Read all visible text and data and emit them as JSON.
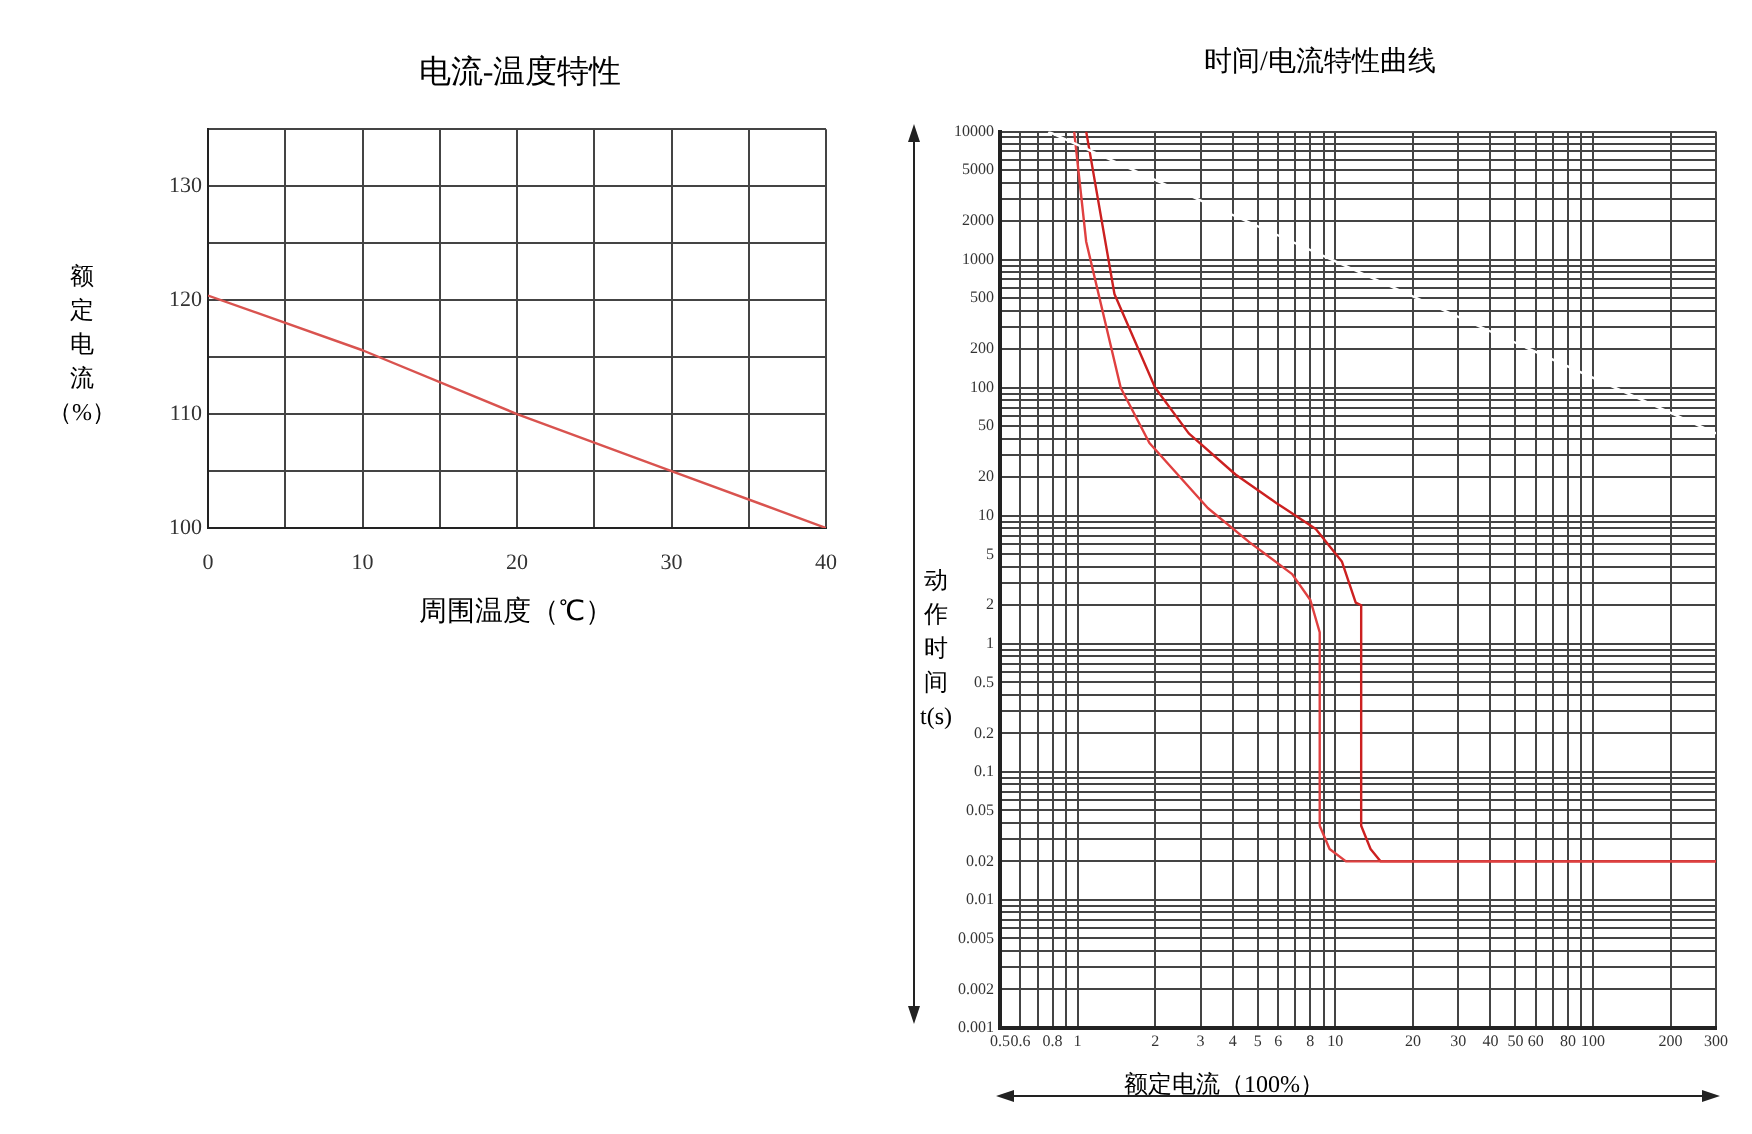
{
  "chart_data": [
    {
      "type": "line",
      "title": "电流-温度特性",
      "xlabel": "周围温度（℃）",
      "ylabel": "额定电流（%）",
      "x": [
        0,
        10,
        20,
        30,
        40
      ],
      "series": [
        {
          "color": "#d9534f",
          "values": [
            120.4,
            115.6,
            110,
            105,
            100
          ]
        }
      ],
      "xlim": [
        0,
        40
      ],
      "xticks": [
        0,
        {
          "value": 5,
          "label": null
        },
        10,
        {
          "value": 15,
          "label": null
        },
        20,
        {
          "value": 25,
          "label": null
        },
        30,
        {
          "value": 35,
          "label": null
        },
        40
      ],
      "ylim": [
        100,
        135
      ],
      "yticks": [
        100,
        {
          "value": 105,
          "label": null
        },
        110,
        {
          "value": 115,
          "label": null
        },
        120,
        {
          "value": 125,
          "label": null
        },
        130,
        {
          "value": 135,
          "label": null
        }
      ],
      "grid": true
    },
    {
      "type": "line",
      "title": "时间/电流特性曲线",
      "xlabel": "额定电流（100%）",
      "ylabel": "动作时间t(s)",
      "log": "xy",
      "series": [
        {
          "color": "#ffffff",
          "x": [
            0.77,
            300
          ],
          "values": [
            10000,
            44
          ]
        },
        {
          "color": "#e04040",
          "x": [
            0.97,
            1.08,
            1.47,
            1.9,
            3.2,
            4.65,
            6.8,
            8.0,
            8.7,
            8.7,
            9.5,
            11,
            300
          ],
          "values": [
            10000,
            1380,
            100,
            37,
            11.5,
            6.2,
            3.5,
            2.2,
            1.23,
            0.038,
            0.025,
            0.02,
            0.02
          ]
        },
        {
          "color": "#cc2020",
          "x": [
            1.08,
            1.39,
            2.0,
            2.7,
            4.1,
            5.9,
            8.4,
            10.6,
            12,
            12.6,
            12.6,
            13.7,
            15,
            300
          ],
          "values": [
            10000,
            540,
            100,
            44,
            21,
            12.6,
            7.9,
            4.4,
            2.1,
            2.0,
            0.038,
            0.025,
            0.02,
            0.02
          ]
        }
      ],
      "xlim": [
        0.5,
        300
      ],
      "xticks": [
        0.5,
        0.6,
        {
          "value": 0.7,
          "label": null
        },
        0.8,
        {
          "value": 0.9,
          "label": null
        },
        1,
        2,
        3,
        4,
        5,
        6,
        {
          "value": 7,
          "label": null
        },
        8,
        {
          "value": 9,
          "label": null
        },
        10,
        20,
        30,
        40,
        50,
        60,
        {
          "value": 70,
          "label": null
        },
        80,
        {
          "value": 90,
          "label": null
        },
        100,
        200,
        300
      ],
      "ylim": [
        0.001,
        10000
      ],
      "yticks": [
        0.001,
        0.002,
        {
          "value": 0.003,
          "label": null
        },
        {
          "value": 0.004,
          "label": null
        },
        0.005,
        {
          "value": 0.006,
          "label": null
        },
        {
          "value": 0.007,
          "label": null
        },
        {
          "value": 0.008,
          "label": null
        },
        {
          "value": 0.009,
          "label": null
        },
        0.01,
        0.02,
        {
          "value": 0.03,
          "label": null
        },
        {
          "value": 0.04,
          "label": null
        },
        0.05,
        {
          "value": 0.06,
          "label": null
        },
        {
          "value": 0.07,
          "label": null
        },
        {
          "value": 0.08,
          "label": null
        },
        {
          "value": 0.09,
          "label": null
        },
        0.1,
        0.2,
        {
          "value": 0.3,
          "label": null
        },
        {
          "value": 0.4,
          "label": null
        },
        0.5,
        {
          "value": 0.6,
          "label": null
        },
        {
          "value": 0.7,
          "label": null
        },
        {
          "value": 0.8,
          "label": null
        },
        {
          "value": 0.9,
          "label": null
        },
        1,
        2,
        {
          "value": 3,
          "label": null
        },
        {
          "value": 4,
          "label": null
        },
        5,
        {
          "value": 6,
          "label": null
        },
        {
          "value": 7,
          "label": null
        },
        {
          "value": 8,
          "label": null
        },
        {
          "value": 9,
          "label": null
        },
        10,
        20,
        {
          "value": 30,
          "label": null
        },
        {
          "value": 40,
          "label": null
        },
        50,
        {
          "value": 60,
          "label": null
        },
        {
          "value": 70,
          "label": null
        },
        {
          "value": 80,
          "label": null
        },
        {
          "value": 90,
          "label": null
        },
        100,
        200,
        {
          "value": 300,
          "label": null
        },
        {
          "value": 400,
          "label": null
        },
        500,
        {
          "value": 600,
          "label": null
        },
        {
          "value": 700,
          "label": null
        },
        {
          "value": 800,
          "label": null
        },
        {
          "value": 900,
          "label": null
        },
        1000,
        2000,
        {
          "value": 3000,
          "label": null
        },
        {
          "value": 4000,
          "label": null
        },
        5000,
        {
          "value": 6000,
          "label": null
        },
        {
          "value": 7000,
          "label": null
        },
        {
          "value": 8000,
          "label": null
        },
        {
          "value": 9000,
          "label": null
        },
        10000
      ],
      "grid": true
    }
  ]
}
